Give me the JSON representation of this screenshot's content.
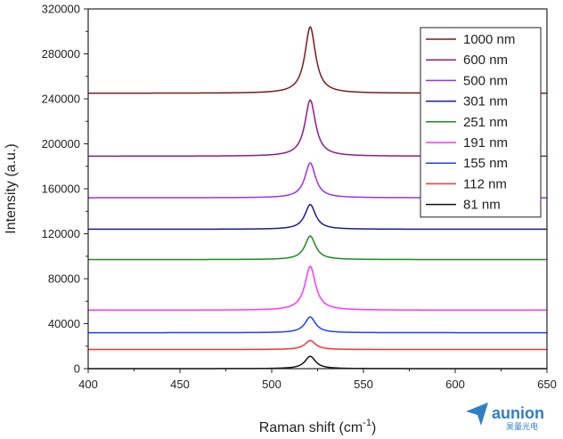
{
  "chart_data": {
    "type": "line",
    "xlabel": "Raman shift (cm",
    "xlabel_sup": "-1",
    "xlabel_end": ")",
    "ylabel": "Intensity (a.u.)",
    "xlim": [
      400,
      650
    ],
    "ylim": [
      0,
      320000
    ],
    "xticks": [
      400,
      450,
      500,
      550,
      600,
      650
    ],
    "yticks": [
      0,
      40000,
      80000,
      120000,
      160000,
      200000,
      240000,
      280000,
      320000
    ],
    "peak_position": 521,
    "grid": false,
    "legend_position": "top-right",
    "series": [
      {
        "name": "1000 nm",
        "color": "#7b1a1a",
        "baseline": 245000,
        "peak": 304000
      },
      {
        "name": "600 nm",
        "color": "#8b1c8b",
        "baseline": 189000,
        "peak": 239000
      },
      {
        "name": "500 nm",
        "color": "#9a32e6",
        "baseline": 152000,
        "peak": 183000
      },
      {
        "name": "301 nm",
        "color": "#1c1c8c",
        "baseline": 124000,
        "peak": 146000
      },
      {
        "name": "251 nm",
        "color": "#1f8a1f",
        "baseline": 97000,
        "peak": 118000
      },
      {
        "name": "191 nm",
        "color": "#ff33ff",
        "baseline": 52000,
        "peak": 91000
      },
      {
        "name": "155 nm",
        "color": "#1f3fff",
        "baseline": 32000,
        "peak": 46000
      },
      {
        "name": "112 nm",
        "color": "#ff3030",
        "baseline": 17000,
        "peak": 25000
      },
      {
        "name": "81 nm",
        "color": "#111111",
        "baseline": 0,
        "peak": 11000
      }
    ]
  },
  "watermark": {
    "text": "aunion",
    "subtext": "昊量光电",
    "color": "#2f7fc4"
  }
}
